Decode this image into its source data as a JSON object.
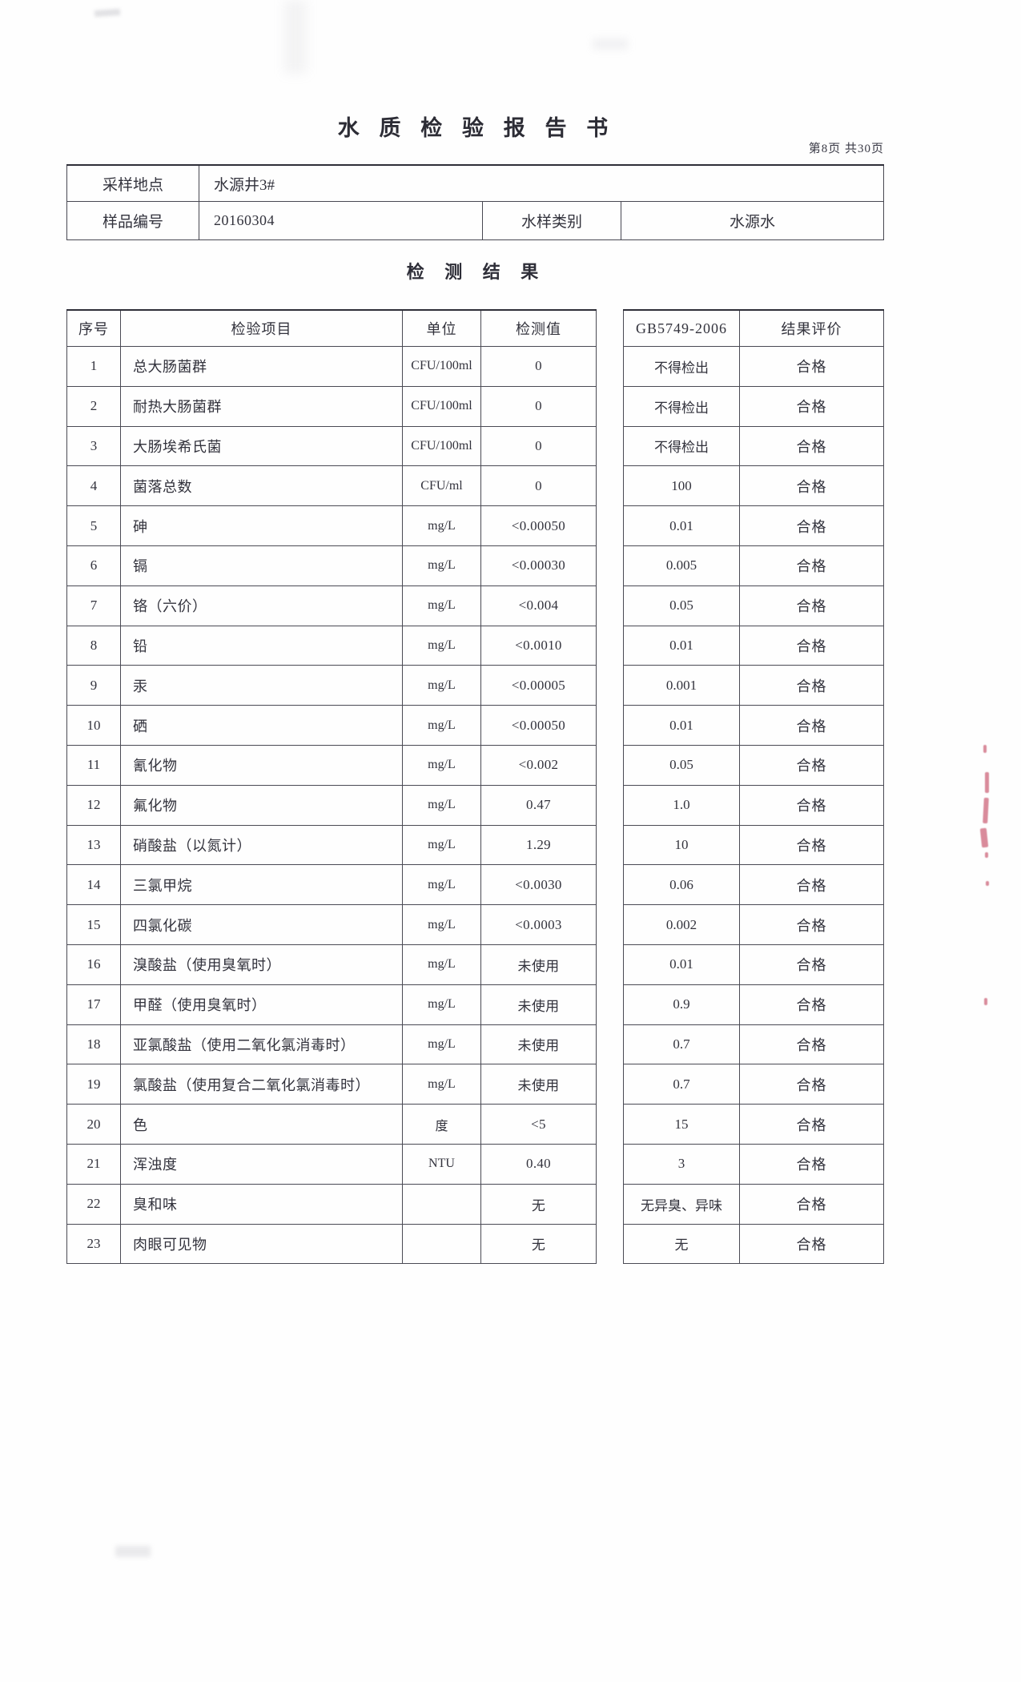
{
  "page": {
    "title": "水 质 检 验 报 告 书",
    "page_info": "第8页 共30页",
    "section_title": "检 测 结 果"
  },
  "sample_info": {
    "location_label": "采样地点",
    "location_value": "水源井3#",
    "sample_no_label": "样品编号",
    "sample_no_value": "20160304",
    "type_label": "水样类别",
    "type_value": "水源水"
  },
  "results_table": {
    "headers": {
      "no": "序号",
      "item": "检验项目",
      "unit": "单位",
      "value": "检测值",
      "standard": "GB5749-2006",
      "evaluation": "结果评价"
    },
    "rows": [
      {
        "no": "1",
        "item": "总大肠菌群",
        "unit": "CFU/100ml",
        "value": "0",
        "standard": "不得检出",
        "evaluation": "合格"
      },
      {
        "no": "2",
        "item": "耐热大肠菌群",
        "unit": "CFU/100ml",
        "value": "0",
        "standard": "不得检出",
        "evaluation": "合格"
      },
      {
        "no": "3",
        "item": "大肠埃希氏菌",
        "unit": "CFU/100ml",
        "value": "0",
        "standard": "不得检出",
        "evaluation": "合格"
      },
      {
        "no": "4",
        "item": "菌落总数",
        "unit": "CFU/ml",
        "value": "0",
        "standard": "100",
        "evaluation": "合格"
      },
      {
        "no": "5",
        "item": "砷",
        "unit": "mg/L",
        "value": "<0.00050",
        "standard": "0.01",
        "evaluation": "合格"
      },
      {
        "no": "6",
        "item": "镉",
        "unit": "mg/L",
        "value": "<0.00030",
        "standard": "0.005",
        "evaluation": "合格"
      },
      {
        "no": "7",
        "item": "铬（六价）",
        "unit": "mg/L",
        "value": "<0.004",
        "standard": "0.05",
        "evaluation": "合格"
      },
      {
        "no": "8",
        "item": "铅",
        "unit": "mg/L",
        "value": "<0.0010",
        "standard": "0.01",
        "evaluation": "合格"
      },
      {
        "no": "9",
        "item": "汞",
        "unit": "mg/L",
        "value": "<0.00005",
        "standard": "0.001",
        "evaluation": "合格"
      },
      {
        "no": "10",
        "item": "硒",
        "unit": "mg/L",
        "value": "<0.00050",
        "standard": "0.01",
        "evaluation": "合格"
      },
      {
        "no": "11",
        "item": "氰化物",
        "unit": "mg/L",
        "value": "<0.002",
        "standard": "0.05",
        "evaluation": "合格"
      },
      {
        "no": "12",
        "item": "氟化物",
        "unit": "mg/L",
        "value": "0.47",
        "standard": "1.0",
        "evaluation": "合格"
      },
      {
        "no": "13",
        "item": "硝酸盐（以氮计）",
        "unit": "mg/L",
        "value": "1.29",
        "standard": "10",
        "evaluation": "合格"
      },
      {
        "no": "14",
        "item": "三氯甲烷",
        "unit": "mg/L",
        "value": "<0.0030",
        "standard": "0.06",
        "evaluation": "合格"
      },
      {
        "no": "15",
        "item": "四氯化碳",
        "unit": "mg/L",
        "value": "<0.0003",
        "standard": "0.002",
        "evaluation": "合格"
      },
      {
        "no": "16",
        "item": "溴酸盐（使用臭氧时）",
        "unit": "mg/L",
        "value": "未使用",
        "standard": "0.01",
        "evaluation": "合格"
      },
      {
        "no": "17",
        "item": "甲醛（使用臭氧时）",
        "unit": "mg/L",
        "value": "未使用",
        "standard": "0.9",
        "evaluation": "合格"
      },
      {
        "no": "18",
        "item": "亚氯酸盐（使用二氧化氯消毒时）",
        "unit": "mg/L",
        "value": "未使用",
        "standard": "0.7",
        "evaluation": "合格"
      },
      {
        "no": "19",
        "item": "氯酸盐（使用复合二氧化氯消毒时）",
        "unit": "mg/L",
        "value": "未使用",
        "standard": "0.7",
        "evaluation": "合格"
      },
      {
        "no": "20",
        "item": "色",
        "unit": "度",
        "value": "<5",
        "standard": "15",
        "evaluation": "合格"
      },
      {
        "no": "21",
        "item": "浑浊度",
        "unit": "NTU",
        "value": "0.40",
        "standard": "3",
        "evaluation": "合格"
      },
      {
        "no": "22",
        "item": "臭和味",
        "unit": "",
        "value": "无",
        "standard": "无异臭、异味",
        "evaluation": "合格"
      },
      {
        "no": "23",
        "item": "肉眼可见物",
        "unit": "",
        "value": "无",
        "standard": "无",
        "evaluation": "合格"
      }
    ]
  }
}
